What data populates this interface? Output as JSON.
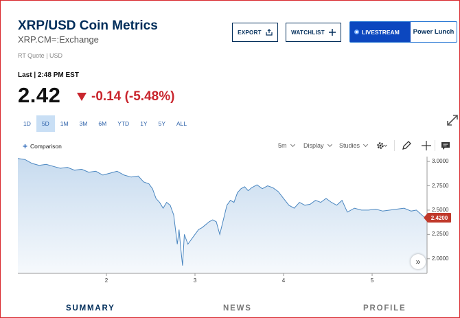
{
  "header": {
    "title": "XRP/USD Coin Metrics",
    "symbol": "XRP.CM=:Exchange",
    "rt_quote": "RT Quote | USD",
    "last_time": "Last | 2:48 PM EST",
    "price": "2.42",
    "change": "-0.14 (-5.48%)",
    "change_color": "#c9262e",
    "change_icon": "triangle-down-icon"
  },
  "actions": {
    "export_label": "EXPORT",
    "export_icon": "share-icon",
    "watchlist_label": "WATCHLIST",
    "watchlist_icon": "plus-icon",
    "livestream_label": "LIVESTREAM",
    "livestream_show": "Power Lunch"
  },
  "ranges": {
    "items": [
      "1D",
      "5D",
      "1M",
      "3M",
      "6M",
      "YTD",
      "1Y",
      "5Y",
      "ALL"
    ],
    "selected": "5D"
  },
  "toolbar": {
    "comparison_label": "Comparison",
    "interval_label": "5m",
    "display_label": "Display",
    "studies_label": "Studies",
    "settings_icon": "gear-icon",
    "draw_icon": "pencil-icon",
    "crosshair_icon": "crosshair-icon",
    "comment_icon": "comment-icon"
  },
  "chart_data": {
    "type": "area",
    "x_label": "",
    "y_label": "",
    "x_ticks": [
      "2",
      "3",
      "4",
      "5"
    ],
    "y_ticks": [
      "3.0000",
      "2.7500",
      "2.5000",
      "2.2500",
      "2.0000"
    ],
    "ylim": [
      1.85,
      3.05
    ],
    "xlim": [
      1.0,
      5.62
    ],
    "last_value_label": "2.4200",
    "last_value": 2.42,
    "line_color": "#4a86c0",
    "fill_color": "#c4d9ee",
    "grid": false,
    "series": [
      {
        "x": [
          1.0,
          1.08,
          1.16,
          1.24,
          1.32,
          1.4,
          1.48,
          1.56,
          1.64,
          1.72,
          1.8,
          1.88,
          1.96,
          2.04,
          2.12,
          2.2,
          2.28,
          2.36,
          2.42,
          2.48,
          2.52,
          2.56,
          2.6,
          2.64,
          2.68,
          2.72,
          2.76,
          2.8,
          2.82,
          2.84,
          2.86,
          2.88,
          2.92,
          2.96,
          3.0,
          3.04,
          3.08,
          3.12,
          3.16,
          3.2,
          3.24,
          3.28,
          3.32,
          3.36,
          3.4,
          3.44,
          3.48,
          3.52,
          3.56,
          3.6,
          3.64,
          3.7,
          3.76,
          3.82,
          3.88,
          3.94,
          4.0,
          4.06,
          4.12,
          4.18,
          4.24,
          4.3,
          4.36,
          4.42,
          4.48,
          4.54,
          4.6,
          4.66,
          4.72,
          4.8,
          4.88,
          4.96,
          5.04,
          5.12,
          5.2,
          5.28,
          5.36,
          5.44,
          5.5,
          5.56,
          5.6,
          5.62
        ],
        "y": [
          3.03,
          3.02,
          2.98,
          2.96,
          2.97,
          2.95,
          2.93,
          2.94,
          2.91,
          2.92,
          2.89,
          2.9,
          2.86,
          2.88,
          2.9,
          2.86,
          2.84,
          2.85,
          2.79,
          2.77,
          2.72,
          2.62,
          2.58,
          2.52,
          2.58,
          2.55,
          2.45,
          2.15,
          2.3,
          2.1,
          1.93,
          2.25,
          2.15,
          2.2,
          2.25,
          2.3,
          2.32,
          2.35,
          2.38,
          2.4,
          2.38,
          2.25,
          2.4,
          2.55,
          2.6,
          2.58,
          2.68,
          2.72,
          2.74,
          2.7,
          2.73,
          2.76,
          2.72,
          2.75,
          2.73,
          2.69,
          2.62,
          2.55,
          2.52,
          2.58,
          2.55,
          2.56,
          2.6,
          2.58,
          2.62,
          2.58,
          2.55,
          2.6,
          2.48,
          2.52,
          2.5,
          2.5,
          2.51,
          2.49,
          2.5,
          2.51,
          2.52,
          2.49,
          2.5,
          2.45,
          2.42,
          2.42
        ]
      }
    ]
  },
  "tabs": [
    "SUMMARY",
    "NEWS",
    "PROFILE"
  ]
}
